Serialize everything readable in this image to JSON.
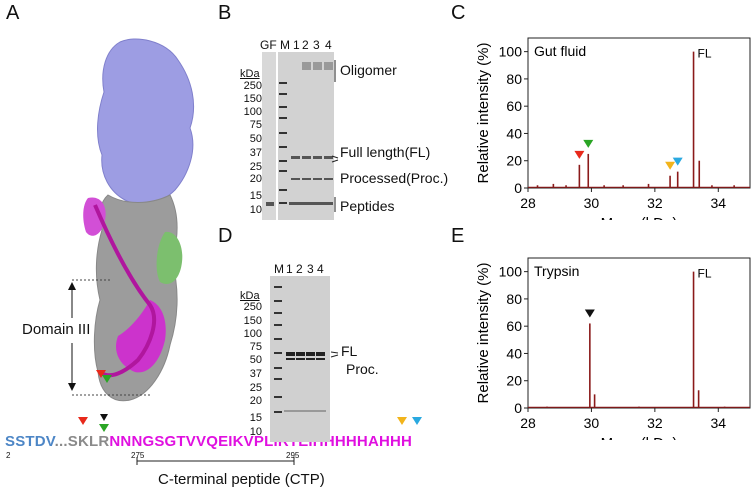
{
  "panels": {
    "A": {
      "label": "A",
      "domain_label": "Domain III",
      "sequence": {
        "blue_part": "SSTDV",
        "dots": "...",
        "grey_part": "SKLR",
        "magenta_part": "NNNGSGTVVQEIKVPLIRTEIHHHHHAHHH",
        "positions": [
          "2",
          "275",
          "295"
        ],
        "ctp_label": "C-terminal peptide (CTP)"
      }
    },
    "B": {
      "label": "B",
      "lanes": [
        "GF",
        "M",
        "1",
        "2",
        "3",
        "4"
      ],
      "kda_label": "kDa",
      "markers": [
        "250",
        "150",
        "100",
        "75",
        "50",
        "37",
        "25",
        "20",
        "15",
        "10"
      ],
      "annotations": [
        "Oligomer",
        "Full length(FL)",
        "Processed(Proc.)",
        "Peptides"
      ]
    },
    "D": {
      "label": "D",
      "lanes": [
        "M",
        "1",
        "2",
        "3",
        "4"
      ],
      "kda_label": "kDa",
      "markers": [
        "250",
        "150",
        "100",
        "75",
        "50",
        "37",
        "25",
        "20",
        "15",
        "10"
      ],
      "annotations": [
        "FL",
        "Proc."
      ]
    }
  },
  "chart_data": [
    {
      "panel": "C",
      "type": "line",
      "title": "Gut fluid",
      "xlabel": "Mass (kDa)",
      "ylabel": "Relative intensity (%)",
      "xlim": [
        28,
        35
      ],
      "ylim": [
        0,
        110
      ],
      "xticks": [
        "28",
        "30",
        "32",
        "34"
      ],
      "yticks": [
        "0",
        "20",
        "40",
        "60",
        "80",
        "100"
      ],
      "peak_label": "FL",
      "color": "#8b1a1a",
      "peaks": [
        {
          "x": 28.3,
          "y": 2
        },
        {
          "x": 28.8,
          "y": 3
        },
        {
          "x": 29.2,
          "y": 2
        },
        {
          "x": 29.62,
          "y": 17
        },
        {
          "x": 29.9,
          "y": 25
        },
        {
          "x": 30.4,
          "y": 2
        },
        {
          "x": 31.0,
          "y": 2
        },
        {
          "x": 31.8,
          "y": 3
        },
        {
          "x": 32.48,
          "y": 9
        },
        {
          "x": 32.72,
          "y": 12
        },
        {
          "x": 33.22,
          "y": 100
        },
        {
          "x": 33.4,
          "y": 20
        },
        {
          "x": 33.8,
          "y": 2
        },
        {
          "x": 34.5,
          "y": 2
        }
      ],
      "markers": [
        {
          "x": 29.62,
          "color": "#e8291b"
        },
        {
          "x": 29.9,
          "color": "#2aa524"
        },
        {
          "x": 32.48,
          "color": "#f2b41b"
        },
        {
          "x": 32.72,
          "color": "#2aa9e0"
        }
      ]
    },
    {
      "panel": "E",
      "type": "line",
      "title": "Trypsin",
      "xlabel": "Mass (kDa)",
      "ylabel": "Relative intensity (%)",
      "xlim": [
        28,
        35
      ],
      "ylim": [
        0,
        110
      ],
      "xticks": [
        "28",
        "30",
        "32",
        "34"
      ],
      "yticks": [
        "0",
        "20",
        "40",
        "60",
        "80",
        "100"
      ],
      "peak_label": "FL",
      "color": "#8b1a1a",
      "peaks": [
        {
          "x": 28.6,
          "y": 1
        },
        {
          "x": 29.95,
          "y": 62
        },
        {
          "x": 30.1,
          "y": 10
        },
        {
          "x": 31.5,
          "y": 1
        },
        {
          "x": 33.22,
          "y": 100
        },
        {
          "x": 33.38,
          "y": 13
        },
        {
          "x": 34.2,
          "y": 1
        }
      ],
      "markers": [
        {
          "x": 29.95,
          "color": "#111111"
        }
      ]
    }
  ]
}
